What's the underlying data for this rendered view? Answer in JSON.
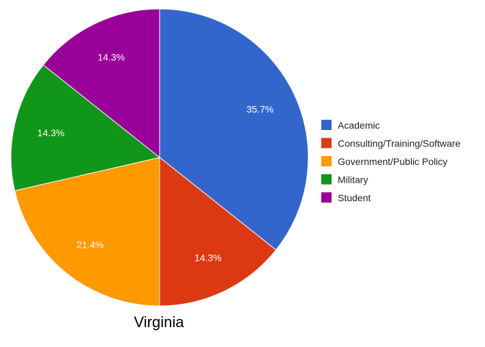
{
  "chart_data": {
    "type": "pie",
    "title": "Virginia",
    "legend_position": "right",
    "series": [
      {
        "name": "Academic",
        "value": 35.7,
        "label": "35.7%",
        "color": "#3366cc"
      },
      {
        "name": "Consulting/Training/Software",
        "value": 14.3,
        "label": "14.3%",
        "color": "#dc3912"
      },
      {
        "name": "Government/Public Policy",
        "value": 21.4,
        "label": "21.4%",
        "color": "#ff9900"
      },
      {
        "name": "Military",
        "value": 14.3,
        "label": "14.3%",
        "color": "#109618"
      },
      {
        "name": "Student",
        "value": 14.3,
        "label": "14.3%",
        "color": "#990099"
      }
    ]
  }
}
